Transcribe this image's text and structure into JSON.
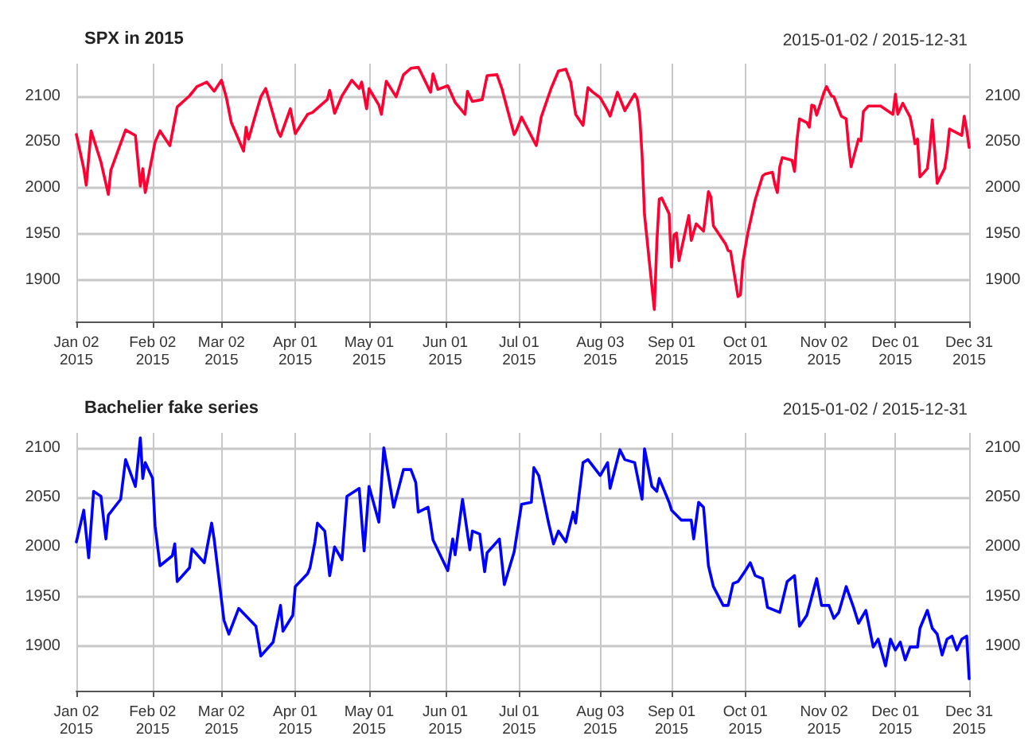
{
  "chart_data": [
    {
      "type": "line",
      "title": "SPX in 2015",
      "subtitle": "2015-01-02 / 2015-12-31",
      "xlim": [
        "2015-01-02",
        "2015-12-31"
      ],
      "xticks": [
        {
          "value": "2015-01-02",
          "label": "Jan 02\n2015"
        },
        {
          "value": "2015-02-02",
          "label": "Feb 02\n2015"
        },
        {
          "value": "2015-03-02",
          "label": "Mar 02\n2015"
        },
        {
          "value": "2015-04-01",
          "label": "Apr 01\n2015"
        },
        {
          "value": "2015-05-01",
          "label": "May 01\n2015"
        },
        {
          "value": "2015-06-01",
          "label": "Jun 01\n2015"
        },
        {
          "value": "2015-07-01",
          "label": "Jul 01\n2015"
        },
        {
          "value": "2015-08-03",
          "label": "Aug 03\n2015"
        },
        {
          "value": "2015-09-01",
          "label": "Sep 01\n2015"
        },
        {
          "value": "2015-10-01",
          "label": "Oct 01\n2015"
        },
        {
          "value": "2015-11-02",
          "label": "Nov 02\n2015"
        },
        {
          "value": "2015-12-01",
          "label": "Dec 01\n2015"
        },
        {
          "value": "2015-12-31",
          "label": "Dec 31\n2015"
        }
      ],
      "ylim": [
        1855,
        2135
      ],
      "yticks": [
        1900,
        1950,
        2000,
        2050,
        2100
      ],
      "y2lim": [
        1855,
        2135
      ],
      "y2ticks": [
        1900,
        1950,
        2000,
        2050,
        2100
      ],
      "grid": true,
      "marker": "none",
      "line_style": "solid",
      "series": [
        {
          "color": "#ff0033",
          "x": [
            "2015-01-02",
            "2015-01-05",
            "2015-01-06",
            "2015-01-08",
            "2015-01-12",
            "2015-01-15",
            "2015-01-16",
            "2015-01-22",
            "2015-01-26",
            "2015-01-28",
            "2015-01-29",
            "2015-01-30",
            "2015-02-03",
            "2015-02-05",
            "2015-02-09",
            "2015-02-12",
            "2015-02-17",
            "2015-02-20",
            "2015-02-24",
            "2015-02-27",
            "2015-03-02",
            "2015-03-04",
            "2015-03-06",
            "2015-03-11",
            "2015-03-12",
            "2015-03-13",
            "2015-03-16",
            "2015-03-18",
            "2015-03-20",
            "2015-03-25",
            "2015-03-26",
            "2015-03-30",
            "2015-04-01",
            "2015-04-06",
            "2015-04-08",
            "2015-04-14",
            "2015-04-15",
            "2015-04-17",
            "2015-04-20",
            "2015-04-24",
            "2015-04-27",
            "2015-04-28",
            "2015-04-30",
            "2015-05-01",
            "2015-05-05",
            "2015-05-06",
            "2015-05-08",
            "2015-05-12",
            "2015-05-15",
            "2015-05-18",
            "2015-05-21",
            "2015-05-22",
            "2015-05-26",
            "2015-05-27",
            "2015-05-29",
            "2015-06-02",
            "2015-06-05",
            "2015-06-09",
            "2015-06-10",
            "2015-06-12",
            "2015-06-16",
            "2015-06-18",
            "2015-06-22",
            "2015-06-24",
            "2015-06-29",
            "2015-06-30",
            "2015-07-02",
            "2015-07-08",
            "2015-07-10",
            "2015-07-14",
            "2015-07-17",
            "2015-07-20",
            "2015-07-22",
            "2015-07-24",
            "2015-07-27",
            "2015-07-29",
            "2015-07-31",
            "2015-08-03",
            "2015-08-06",
            "2015-08-07",
            "2015-08-10",
            "2015-08-13",
            "2015-08-17",
            "2015-08-18",
            "2015-08-19",
            "2015-08-20",
            "2015-08-21",
            "2015-08-24",
            "2015-08-25",
            "2015-08-26",
            "2015-08-27",
            "2015-08-28",
            "2015-08-31",
            "2015-09-01",
            "2015-09-02",
            "2015-09-03",
            "2015-09-04",
            "2015-09-08",
            "2015-09-09",
            "2015-09-10",
            "2015-09-11",
            "2015-09-14",
            "2015-09-16",
            "2015-09-17",
            "2015-09-18",
            "2015-09-22",
            "2015-09-23",
            "2015-09-24",
            "2015-09-25",
            "2015-09-28",
            "2015-09-29",
            "2015-09-30",
            "2015-10-02",
            "2015-10-05",
            "2015-10-08",
            "2015-10-09",
            "2015-10-12",
            "2015-10-13",
            "2015-10-14",
            "2015-10-15",
            "2015-10-16",
            "2015-10-20",
            "2015-10-21",
            "2015-10-22",
            "2015-10-23",
            "2015-10-26",
            "2015-10-27",
            "2015-10-28",
            "2015-10-29",
            "2015-10-30",
            "2015-11-02",
            "2015-11-03",
            "2015-11-05",
            "2015-11-06",
            "2015-11-09",
            "2015-11-11",
            "2015-11-12",
            "2015-11-13",
            "2015-11-16",
            "2015-11-17",
            "2015-11-18",
            "2015-11-20",
            "2015-11-25",
            "2015-11-30",
            "2015-12-01",
            "2015-12-02",
            "2015-12-04",
            "2015-12-07",
            "2015-12-08",
            "2015-12-09",
            "2015-12-10",
            "2015-12-11",
            "2015-12-14",
            "2015-12-15",
            "2015-12-16",
            "2015-12-17",
            "2015-12-18",
            "2015-12-21",
            "2015-12-22",
            "2015-12-23",
            "2015-12-28",
            "2015-12-29",
            "2015-12-30",
            "2015-12-31"
          ],
          "values": [
            2058,
            2021,
            2003,
            2062,
            2028,
            1993,
            2019,
            2063,
            2057,
            2002,
            2021,
            1995,
            2050,
            2062,
            2046,
            2088,
            2100,
            2110,
            2115,
            2105,
            2117,
            2098,
            2071,
            2040,
            2066,
            2053,
            2081,
            2099,
            2108,
            2061,
            2056,
            2086,
            2059,
            2080,
            2082,
            2096,
            2106,
            2081,
            2100,
            2117,
            2108,
            2115,
            2086,
            2108,
            2090,
            2080,
            2116,
            2099,
            2123,
            2130,
            2131,
            2126,
            2104,
            2124,
            2107,
            2111,
            2093,
            2080,
            2105,
            2094,
            2096,
            2122,
            2123,
            2108,
            2058,
            2063,
            2077,
            2046,
            2077,
            2108,
            2127,
            2129,
            2115,
            2080,
            2068,
            2109,
            2104,
            2098,
            2084,
            2078,
            2104,
            2084,
            2102,
            2097,
            2080,
            2036,
            1971,
            1893,
            1868,
            1940,
            1988,
            1989,
            1972,
            1914,
            1949,
            1951,
            1921,
            1970,
            1943,
            1952,
            1961,
            1953,
            1996,
            1990,
            1959,
            1943,
            1939,
            1932,
            1931,
            1882,
            1884,
            1920,
            1951,
            1987,
            2013,
            2015,
            2017,
            2004,
            1995,
            2023,
            2033,
            2030,
            2018,
            2052,
            2075,
            2071,
            2066,
            2090,
            2089,
            2079,
            2104,
            2110,
            2100,
            2099,
            2078,
            2075,
            2045,
            2023,
            2053,
            2051,
            2083,
            2089,
            2089,
            2080,
            2102,
            2080,
            2092,
            2077,
            2064,
            2048,
            2053,
            2012,
            2021,
            2043,
            2074,
            2041,
            2005,
            2021,
            2038,
            2064,
            2057,
            2078,
            2063,
            2044
          ]
        }
      ]
    },
    {
      "type": "line",
      "title": "Bachelier fake series",
      "subtitle": "2015-01-02 / 2015-12-31",
      "xlim": [
        "2015-01-02",
        "2015-12-31"
      ],
      "xticks": [
        {
          "value": "2015-01-02",
          "label": "Jan 02\n2015"
        },
        {
          "value": "2015-02-02",
          "label": "Feb 02\n2015"
        },
        {
          "value": "2015-03-02",
          "label": "Mar 02\n2015"
        },
        {
          "value": "2015-04-01",
          "label": "Apr 01\n2015"
        },
        {
          "value": "2015-05-01",
          "label": "May 01\n2015"
        },
        {
          "value": "2015-06-01",
          "label": "Jun 01\n2015"
        },
        {
          "value": "2015-07-01",
          "label": "Jul 01\n2015"
        },
        {
          "value": "2015-08-03",
          "label": "Aug 03\n2015"
        },
        {
          "value": "2015-09-01",
          "label": "Sep 01\n2015"
        },
        {
          "value": "2015-10-01",
          "label": "Oct 01\n2015"
        },
        {
          "value": "2015-11-02",
          "label": "Nov 02\n2015"
        },
        {
          "value": "2015-12-01",
          "label": "Dec 01\n2015"
        },
        {
          "value": "2015-12-31",
          "label": "Dec 31\n2015"
        }
      ],
      "ylim": [
        1855,
        2115
      ],
      "yticks": [
        1900,
        1950,
        2000,
        2050,
        2100
      ],
      "y2lim": [
        1855,
        2115
      ],
      "y2ticks": [
        1900,
        1950,
        2000,
        2050,
        2100
      ],
      "grid": true,
      "marker": "none",
      "line_style": "solid",
      "series": [
        {
          "color": "#0000ff",
          "x": [
            "2015-01-02",
            "2015-01-05",
            "2015-01-07",
            "2015-01-09",
            "2015-01-12",
            "2015-01-14",
            "2015-01-15",
            "2015-01-20",
            "2015-01-22",
            "2015-01-26",
            "2015-01-28",
            "2015-01-29",
            "2015-01-30",
            "2015-02-02",
            "2015-02-03",
            "2015-02-05",
            "2015-02-10",
            "2015-02-11",
            "2015-02-12",
            "2015-02-17",
            "2015-02-18",
            "2015-02-23",
            "2015-02-26",
            "2015-02-27",
            "2015-03-03",
            "2015-03-05",
            "2015-03-09",
            "2015-03-16",
            "2015-03-18",
            "2015-03-23",
            "2015-03-26",
            "2015-03-27",
            "2015-03-31",
            "2015-04-01",
            "2015-04-06",
            "2015-04-07",
            "2015-04-09",
            "2015-04-10",
            "2015-04-13",
            "2015-04-15",
            "2015-04-17",
            "2015-04-20",
            "2015-04-22",
            "2015-04-27",
            "2015-04-29",
            "2015-05-01",
            "2015-05-05",
            "2015-05-07",
            "2015-05-11",
            "2015-05-15",
            "2015-05-18",
            "2015-05-20",
            "2015-05-21",
            "2015-05-25",
            "2015-05-27",
            "2015-06-02",
            "2015-06-04",
            "2015-06-05",
            "2015-06-08",
            "2015-06-11",
            "2015-06-12",
            "2015-06-15",
            "2015-06-17",
            "2015-06-18",
            "2015-06-23",
            "2015-06-25",
            "2015-06-29",
            "2015-07-02",
            "2015-07-06",
            "2015-07-07",
            "2015-07-09",
            "2015-07-13",
            "2015-07-15",
            "2015-07-17",
            "2015-07-20",
            "2015-07-23",
            "2015-07-24",
            "2015-07-27",
            "2015-07-29",
            "2015-08-03",
            "2015-08-06",
            "2015-08-07",
            "2015-08-11",
            "2015-08-13",
            "2015-08-17",
            "2015-08-20",
            "2015-08-21",
            "2015-08-24",
            "2015-08-26",
            "2015-08-27",
            "2015-08-31",
            "2015-09-01",
            "2015-09-05",
            "2015-09-09",
            "2015-09-10",
            "2015-09-12",
            "2015-09-14",
            "2015-09-16",
            "2015-09-18",
            "2015-09-22",
            "2015-09-24",
            "2015-09-26",
            "2015-09-28",
            "2015-10-01",
            "2015-10-03",
            "2015-10-05",
            "2015-10-08",
            "2015-10-10",
            "2015-10-15",
            "2015-10-18",
            "2015-10-21",
            "2015-10-23",
            "2015-10-26",
            "2015-10-30",
            "2015-11-01",
            "2015-11-04",
            "2015-11-06",
            "2015-11-08",
            "2015-11-11",
            "2015-11-14",
            "2015-11-16",
            "2015-11-19",
            "2015-11-22",
            "2015-11-24",
            "2015-11-27",
            "2015-11-29",
            "2015-12-01",
            "2015-12-03",
            "2015-12-05",
            "2015-12-07",
            "2015-12-10",
            "2015-12-11",
            "2015-12-14",
            "2015-12-16",
            "2015-12-18",
            "2015-12-20",
            "2015-12-22",
            "2015-12-24",
            "2015-12-26",
            "2015-12-28",
            "2015-12-30",
            "2015-12-31"
          ],
          "values": [
            2005,
            2037,
            1989,
            2056,
            2051,
            2008,
            2032,
            2048,
            2088,
            2061,
            2110,
            2069,
            2085,
            2069,
            2021,
            1981,
            1991,
            2003,
            1965,
            1979,
            1998,
            1984,
            2024,
            2008,
            1926,
            1912,
            1938,
            1920,
            1890,
            1904,
            1941,
            1915,
            1931,
            1960,
            1973,
            1979,
            2005,
            2024,
            2016,
            1971,
            2000,
            1987,
            2051,
            2059,
            1996,
            2061,
            2025,
            2100,
            2040,
            2078,
            2078,
            2065,
            2035,
            2040,
            2007,
            1976,
            2008,
            1992,
            2048,
            1997,
            2016,
            2013,
            1975,
            1994,
            2008,
            1962,
            1995,
            2043,
            2045,
            2080,
            2072,
            2024,
            2003,
            2016,
            2005,
            2035,
            2024,
            2085,
            2088,
            2072,
            2085,
            2059,
            2098,
            2088,
            2085,
            2048,
            2099,
            2061,
            2056,
            2069,
            2045,
            2037,
            2027,
            2027,
            2008,
            2045,
            2040,
            1981,
            1960,
            1941,
            1941,
            1963,
            1965,
            1976,
            1984,
            1971,
            1968,
            1939,
            1934,
            1965,
            1971,
            1920,
            1931,
            1968,
            1941,
            1941,
            1928,
            1934,
            1960,
            1939,
            1923,
            1936,
            1899,
            1907,
            1880,
            1907,
            1896,
            1904,
            1886,
            1899,
            1899,
            1918,
            1936,
            1918,
            1912,
            1891,
            1907,
            1910,
            1896,
            1907,
            1910,
            1867
          ]
        }
      ]
    }
  ]
}
